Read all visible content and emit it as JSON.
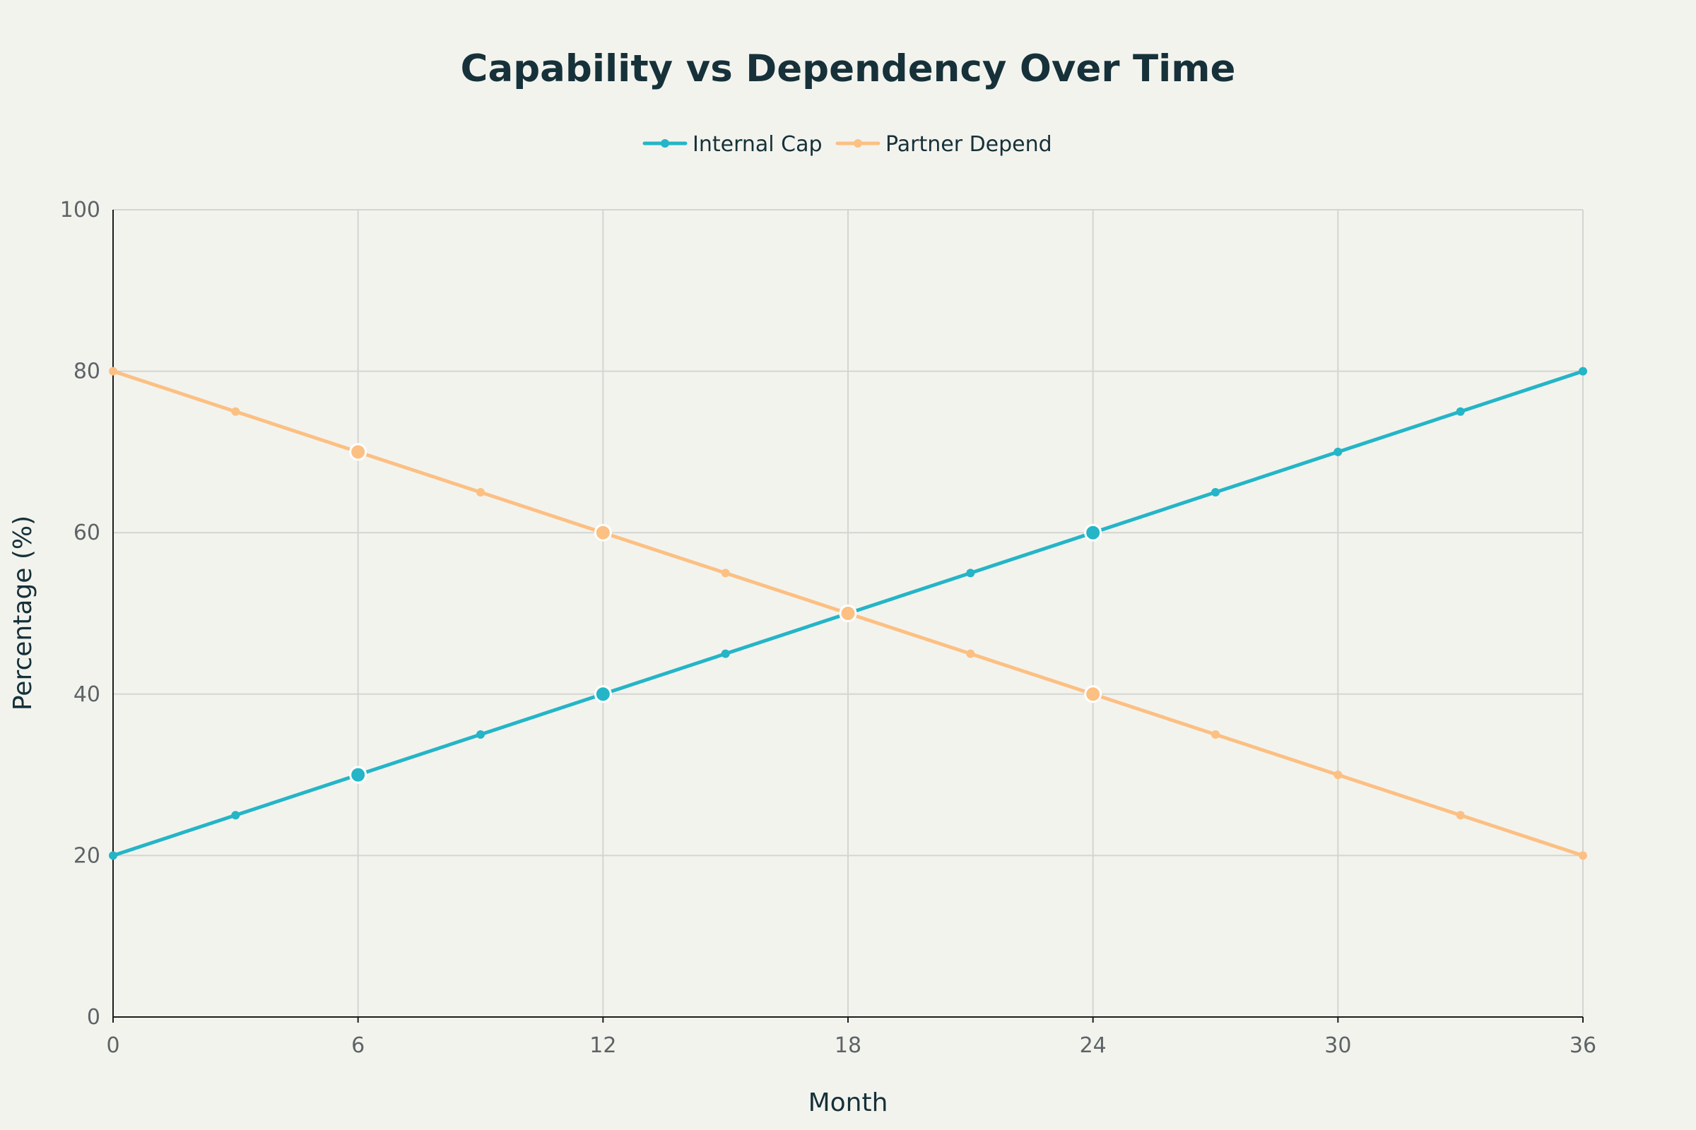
{
  "chart_data": {
    "type": "line",
    "title": "Capability vs Dependency Over Time",
    "xlabel": "Month",
    "ylabel": "Percentage (%)",
    "xlim": [
      0,
      36
    ],
    "ylim": [
      0,
      100
    ],
    "xticks": [
      0,
      6,
      12,
      18,
      24,
      30,
      36
    ],
    "yticks": [
      0,
      20,
      40,
      60,
      80,
      100
    ],
    "grid": true,
    "legend_position": "top-center",
    "x": [
      0,
      3,
      6,
      9,
      12,
      15,
      18,
      21,
      24,
      27,
      30,
      33,
      36
    ],
    "highlight_x": [
      6,
      12,
      18,
      24
    ],
    "series": [
      {
        "name": "Internal Cap",
        "color": "#24b5c7",
        "values": [
          20,
          25,
          30,
          35,
          40,
          45,
          50,
          55,
          60,
          65,
          70,
          75,
          80
        ]
      },
      {
        "name": "Partner Depend",
        "color": "#fcc083",
        "values": [
          80,
          75,
          70,
          65,
          60,
          55,
          50,
          45,
          40,
          35,
          30,
          25,
          20
        ]
      }
    ]
  }
}
